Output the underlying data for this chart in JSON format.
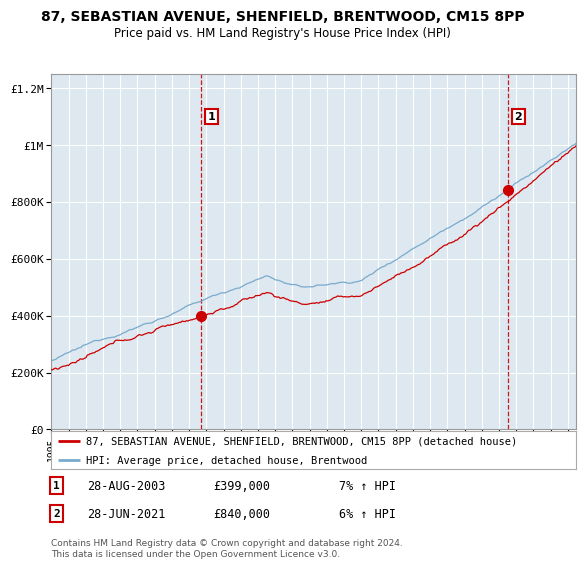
{
  "title_line1": "87, SEBASTIAN AVENUE, SHENFIELD, BRENTWOOD, CM15 8PP",
  "title_line2": "Price paid vs. HM Land Registry's House Price Index (HPI)",
  "background_color": "#ffffff",
  "plot_bg_color": "#dde8f0",
  "grid_color": "#ffffff",
  "sale1_year": 2003.67,
  "sale1_price": 399000,
  "sale2_year": 2021.5,
  "sale2_price": 840000,
  "x_start_year": 1995,
  "x_end_year": 2025,
  "y_ticks": [
    0,
    200000,
    400000,
    600000,
    800000,
    1000000,
    1200000
  ],
  "y_tick_labels": [
    "£0",
    "£200K",
    "£400K",
    "£600K",
    "£800K",
    "£1M",
    "£1.2M"
  ],
  "legend_line1": "87, SEBASTIAN AVENUE, SHENFIELD, BRENTWOOD, CM15 8PP (detached house)",
  "legend_line2": "HPI: Average price, detached house, Brentwood",
  "annotation1_date": "28-AUG-2003",
  "annotation1_price": "£399,000",
  "annotation1_hpi": "7% ↑ HPI",
  "annotation2_date": "28-JUN-2021",
  "annotation2_price": "£840,000",
  "annotation2_hpi": "6% ↑ HPI",
  "footer": "Contains HM Land Registry data © Crown copyright and database right 2024.\nThis data is licensed under the Open Government Licence v3.0.",
  "line_color_red": "#cc0000",
  "line_color_blue": "#7aaacc",
  "dashed_color": "#cc0000",
  "ylim_max": 1250000
}
